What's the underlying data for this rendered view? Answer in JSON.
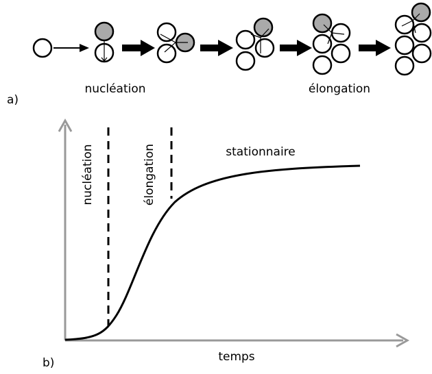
{
  "panel_a": {
    "label": "a)",
    "nucleation": "nucléation",
    "elongation": "élongation"
  },
  "panel_b": {
    "label": "b)",
    "nucleation": "nucléation",
    "elongation": "élongation",
    "stationary": "stationnaire",
    "x_axis": "temps"
  }
}
